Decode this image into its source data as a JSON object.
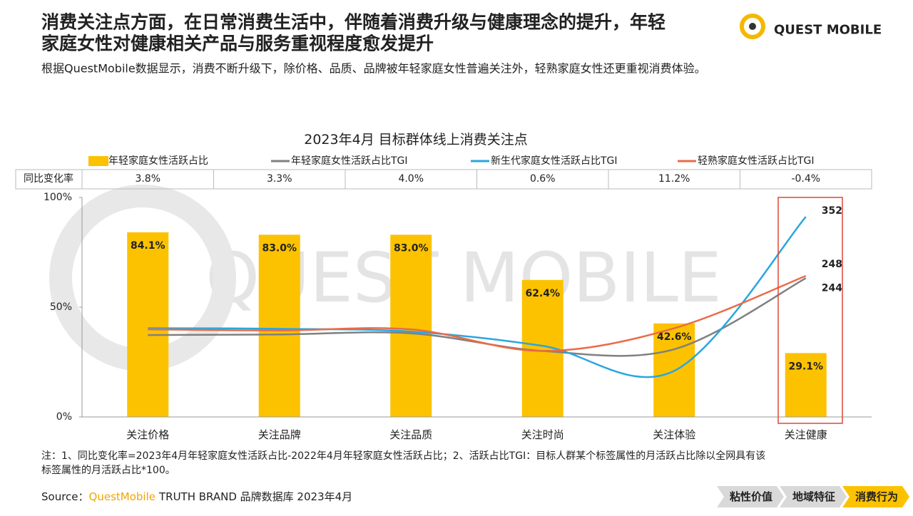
{
  "header": {
    "title": [
      "消费关注点方面，在日常消费生活中，伴随着消费升级与健康理念的提升，年轻",
      "家庭女性对健康相关产品与服务重视程度愈发提升"
    ],
    "subtitle": "根据QuestMobile数据显示，消费不断升级下，除价格、品质、品牌被年轻家庭女性普遍关注外，轻熟家庭女性还更重视消费体验。",
    "logo": "QUEST MOBILE"
  },
  "chart_data": {
    "type": "bar",
    "title": "2023年4月 目标群体线上消费关注点",
    "watermark": "QUEST MOBILE",
    "categories": [
      "关注价格",
      "关注品牌",
      "关注品质",
      "关注时尚",
      "关注体验",
      "关注健康"
    ],
    "series": [
      {
        "name": "年轻家庭女性活跃占比",
        "type": "bar",
        "color": "#fcc200",
        "values": [
          84.1,
          83.0,
          83.0,
          62.4,
          42.6,
          29.1
        ],
        "value_labels": [
          "84.1%",
          "83.0%",
          "83.0%",
          "62.4%",
          "42.6%",
          "29.1%"
        ]
      },
      {
        "name": "年轻家庭女性活跃占比TGI",
        "type": "line",
        "axis": "y2",
        "color": "#808080",
        "values": [
          144,
          145,
          147,
          116,
          119,
          244
        ],
        "value_labels": [
          null,
          null,
          null,
          null,
          null,
          "244"
        ]
      },
      {
        "name": "新生代家庭女性活跃占比TGI",
        "type": "line",
        "axis": "y2",
        "color": "#2ba6de",
        "values": [
          156,
          155,
          150,
          125,
          81,
          352
        ],
        "value_labels": [
          null,
          null,
          null,
          null,
          null,
          "352"
        ]
      },
      {
        "name": "轻熟家庭女性活跃占比TGI",
        "type": "line",
        "axis": "y2",
        "color": "#ea6b47",
        "values": [
          154,
          152,
          154,
          116,
          156,
          248
        ],
        "value_labels": [
          null,
          null,
          null,
          null,
          null,
          "248"
        ]
      }
    ],
    "yoy_label": "同比变化率",
    "yoy": [
      "3.8%",
      "3.3%",
      "4.0%",
      "0.6%",
      "11.2%",
      "-0.4%"
    ],
    "ylim": [
      0,
      100
    ],
    "yticks": [
      {
        "value": 0,
        "label": "0%"
      },
      {
        "value": 50,
        "label": "50%"
      },
      {
        "value": 100,
        "label": "100%"
      }
    ],
    "y2lim": [
      0,
      386
    ]
  },
  "note": [
    "注：1、同比变化率=2023年4月年轻家庭女性活跃占比-2022年4月年轻家庭女性活跃占比；2、活跃占比TGI：目标人群某个标签属性的月活跃占比除以全网具有该",
    "标签属性的月活跃占比*100。"
  ],
  "source": {
    "prefix": "Source：",
    "brand": "QuestMobile",
    "text": "TRUTH BRAND 品牌数据库 2023年4月"
  },
  "nav": [
    "粘性价值",
    "地域特征",
    "消费行为"
  ]
}
